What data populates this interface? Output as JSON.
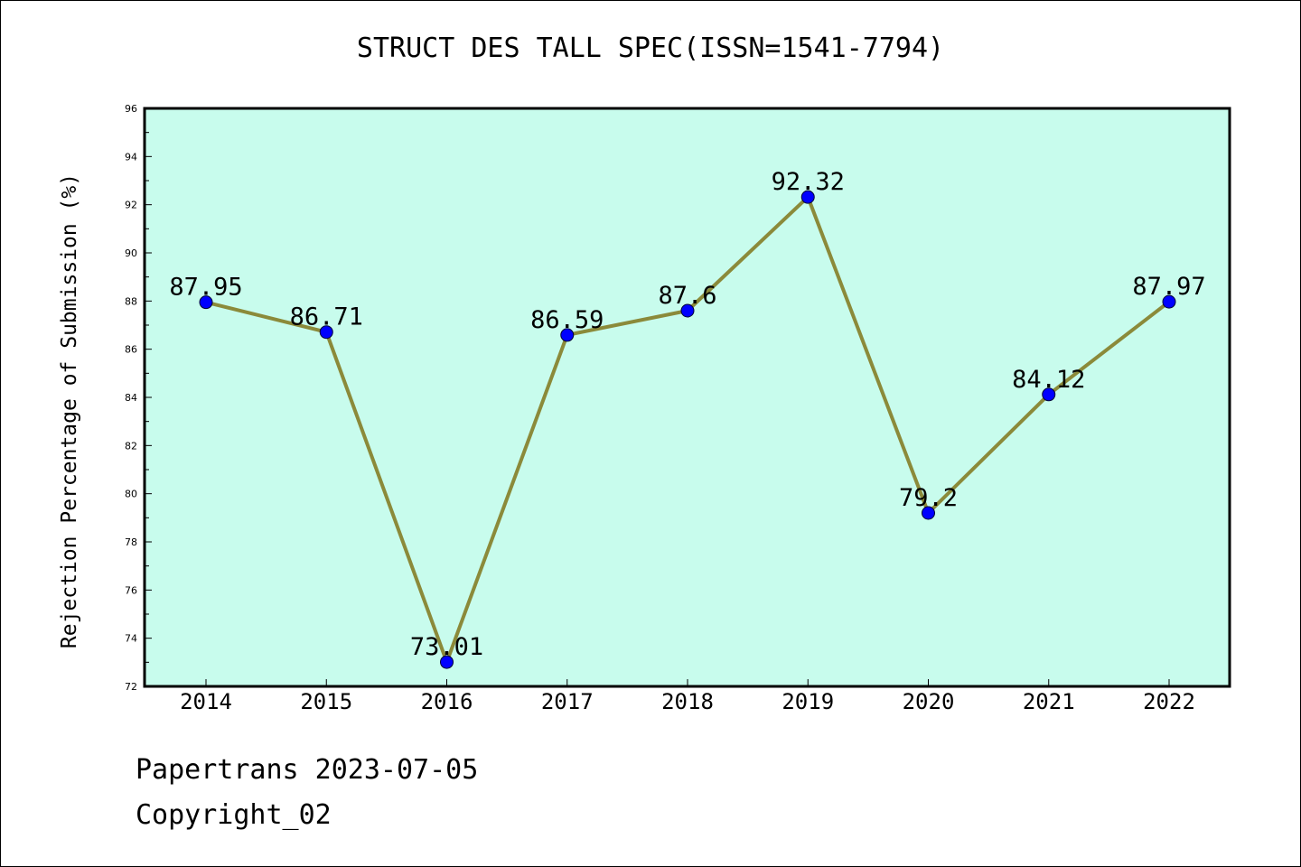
{
  "title": "STRUCT DES TALL SPEC(ISSN=1541-7794)",
  "footer": {
    "line1": "Papertrans 2023-07-05",
    "line2": "Copyright_02"
  },
  "colors": {
    "plot_bg": "#c8fced",
    "line": "#8b8a3a",
    "marker": "#0000ff"
  },
  "chart_data": {
    "type": "line",
    "title": "STRUCT DES TALL SPEC(ISSN=1541-7794)",
    "xlabel": "",
    "ylabel": "Rejection Percentage of Submission (%)",
    "categories": [
      "2014",
      "2015",
      "2016",
      "2017",
      "2018",
      "2019",
      "2020",
      "2021",
      "2022"
    ],
    "values": [
      87.95,
      86.71,
      73.01,
      86.59,
      87.6,
      92.32,
      79.2,
      84.12,
      87.97
    ],
    "data_labels": [
      "87.95",
      "86.71",
      "73.01",
      "86.59",
      "87.6",
      "92.32",
      "79.2",
      "84.12",
      "87.97"
    ],
    "ylim": [
      72,
      96
    ],
    "yticks": [
      "72",
      "74",
      "76",
      "78",
      "80",
      "82",
      "84",
      "86",
      "88",
      "90",
      "92",
      "94",
      "96"
    ],
    "grid": false,
    "legend": "none"
  }
}
